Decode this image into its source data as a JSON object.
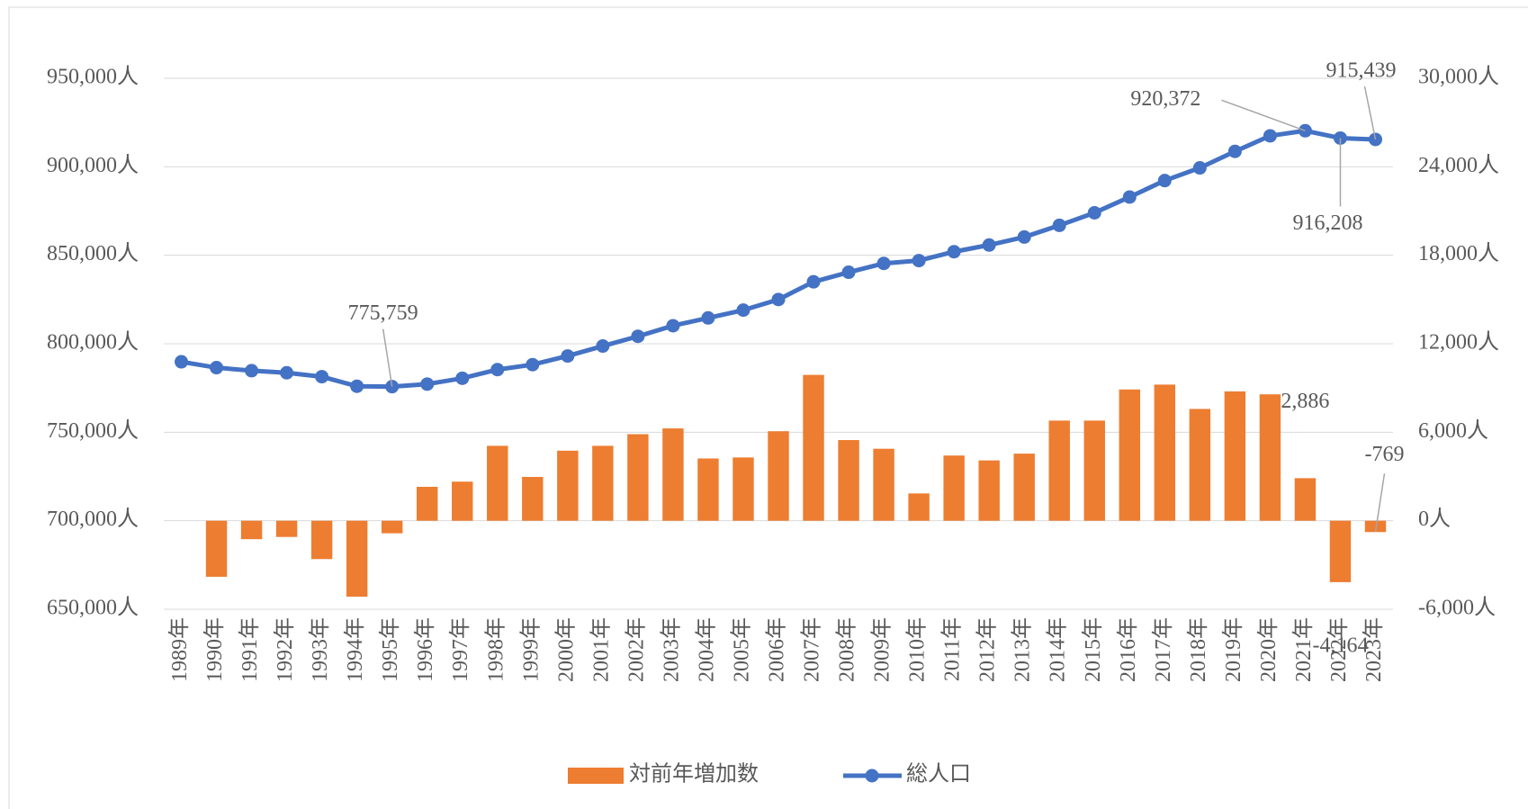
{
  "chart_data": {
    "type": "bar+line",
    "categories": [
      "1989年",
      "1990年",
      "1991年",
      "1992年",
      "1993年",
      "1994年",
      "1995年",
      "1996年",
      "1997年",
      "1998年",
      "1999年",
      "2000年",
      "2001年",
      "2002年",
      "2003年",
      "2004年",
      "2005年",
      "2006年",
      "2007年",
      "2008年",
      "2009年",
      "2010年",
      "2011年",
      "2012年",
      "2013年",
      "2014年",
      "2015年",
      "2016年",
      "2017年",
      "2018年",
      "2019年",
      "2020年",
      "2021年",
      "2022年",
      "2023年"
    ],
    "series": [
      {
        "name": "対前年増加数",
        "type": "bar",
        "axis": "y2",
        "color": "#ed7d31",
        "values": [
          null,
          -3800,
          -1250,
          -1100,
          -2600,
          -5150,
          -850,
          2300,
          2650,
          5080,
          2970,
          4750,
          5080,
          5870,
          6260,
          4220,
          4290,
          6070,
          9890,
          5470,
          4880,
          1850,
          4420,
          4090,
          4550,
          6790,
          6790,
          8900,
          9230,
          7580,
          8770,
          8570,
          2886,
          -4164,
          -769
        ],
        "value_labels": [
          null,
          null,
          null,
          null,
          null,
          null,
          null,
          null,
          null,
          null,
          null,
          null,
          null,
          null,
          null,
          null,
          null,
          null,
          null,
          null,
          null,
          null,
          null,
          null,
          null,
          null,
          null,
          null,
          null,
          null,
          null,
          null,
          "2,886",
          "-4,164",
          "-769"
        ]
      },
      {
        "name": "総人口",
        "type": "line",
        "axis": "y",
        "color": "#4472c4",
        "values": [
          789800,
          786500,
          784800,
          783600,
          781400,
          776000,
          775759,
          777200,
          780500,
          785400,
          788200,
          793100,
          798700,
          804200,
          810200,
          814600,
          819000,
          825000,
          835000,
          840400,
          845400,
          847000,
          852000,
          855800,
          860300,
          866900,
          874000,
          882900,
          892200,
          899400,
          908700,
          917486,
          920372,
          916208,
          915439
        ],
        "value_labels": [
          null,
          null,
          null,
          null,
          null,
          null,
          "775,759",
          null,
          null,
          null,
          null,
          null,
          null,
          null,
          null,
          null,
          null,
          null,
          null,
          null,
          null,
          null,
          null,
          null,
          null,
          null,
          null,
          null,
          null,
          null,
          null,
          null,
          "920,372",
          "916,208",
          "915,439"
        ]
      }
    ],
    "ylim": [
      650000,
      950000
    ],
    "yticks": [
      {
        "value": 650000,
        "label": "650,000人"
      },
      {
        "value": 700000,
        "label": "700,000人"
      },
      {
        "value": 750000,
        "label": "750,000人"
      },
      {
        "value": 800000,
        "label": "800,000人"
      },
      {
        "value": 850000,
        "label": "850,000人"
      },
      {
        "value": 900000,
        "label": "900,000人"
      },
      {
        "value": 950000,
        "label": "950,000人"
      }
    ],
    "y2lim": [
      -6000,
      30000
    ],
    "y2ticks": [
      {
        "value": -6000,
        "label": "-6,000人"
      },
      {
        "value": 0,
        "label": "0人"
      },
      {
        "value": 6000,
        "label": "6,000人"
      },
      {
        "value": 12000,
        "label": "12,000人"
      },
      {
        "value": 18000,
        "label": "18,000人"
      },
      {
        "value": 24000,
        "label": "24,000人"
      },
      {
        "value": 30000,
        "label": "30,000人"
      }
    ],
    "grid": true,
    "legend": "bottom"
  }
}
